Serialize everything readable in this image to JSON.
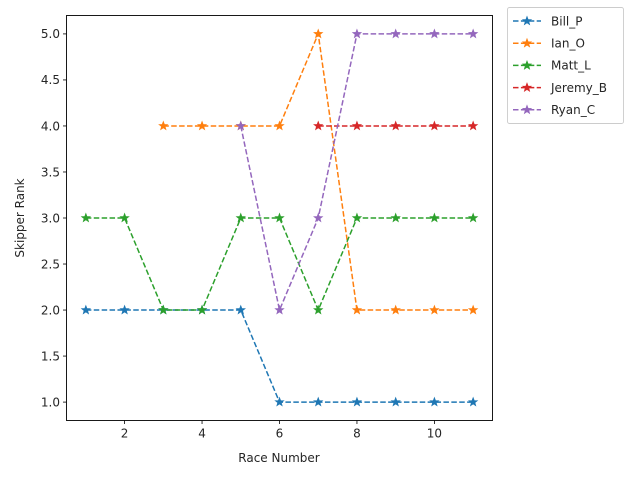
{
  "chart_data": {
    "type": "line",
    "title": "",
    "xlabel": "Race Number",
    "ylabel": "Skipper Rank",
    "xlim": [
      0.5,
      11.5
    ],
    "ylim": [
      0.8,
      5.2
    ],
    "xticks": [
      2,
      4,
      6,
      8,
      10
    ],
    "yticks": [
      1.0,
      1.5,
      2.0,
      2.5,
      3.0,
      3.5,
      4.0,
      4.5,
      5.0
    ],
    "xtick_labels": [
      "2",
      "4",
      "6",
      "8",
      "10"
    ],
    "ytick_labels": [
      "1.0",
      "1.5",
      "2.0",
      "2.5",
      "3.0",
      "3.5",
      "4.0",
      "4.5",
      "5.0"
    ],
    "grid": false,
    "legend_position": "outside-top-right",
    "line_style": "dashed",
    "marker": "star",
    "series": [
      {
        "name": "Bill_P",
        "color": "#1f77b4",
        "x": [
          1,
          2,
          3,
          4,
          5,
          6,
          7,
          8,
          9,
          10,
          11
        ],
        "y": [
          2,
          2,
          2,
          2,
          2,
          1,
          1,
          1,
          1,
          1,
          1
        ]
      },
      {
        "name": "Ian_O",
        "color": "#ff7f0e",
        "x": [
          3,
          4,
          5,
          6,
          7,
          8,
          9,
          10,
          11
        ],
        "y": [
          4,
          4,
          4,
          4,
          5,
          2,
          2,
          2,
          2
        ]
      },
      {
        "name": "Matt_L",
        "color": "#2ca02c",
        "x": [
          1,
          2,
          3,
          4,
          5,
          6,
          7,
          8,
          9,
          10,
          11
        ],
        "y": [
          3,
          3,
          2,
          2,
          3,
          3,
          2,
          3,
          3,
          3,
          3
        ]
      },
      {
        "name": "Jeremy_B",
        "color": "#d62728",
        "x": [
          7,
          8,
          9,
          10,
          11
        ],
        "y": [
          4,
          4,
          4,
          4,
          4
        ]
      },
      {
        "name": "Ryan_C",
        "color": "#9467bd",
        "x": [
          5,
          6,
          7,
          8,
          9,
          10,
          11
        ],
        "y": [
          4,
          2,
          3,
          5,
          5,
          5,
          5
        ]
      }
    ]
  }
}
